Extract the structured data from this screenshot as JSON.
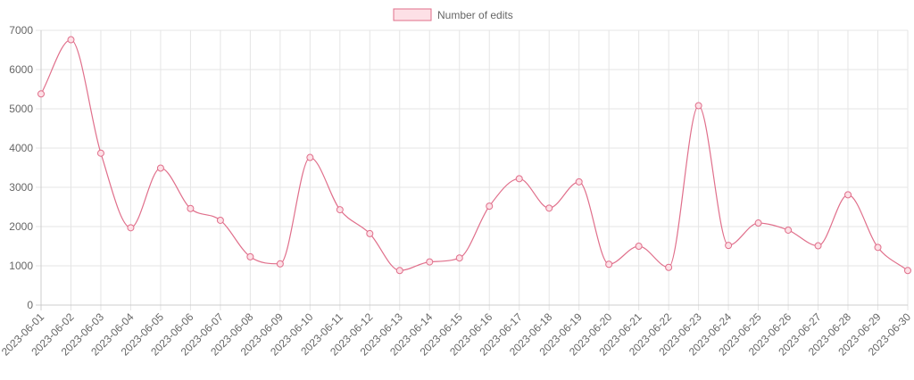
{
  "chart_data": {
    "type": "line",
    "x": [
      "2023-06-01",
      "2023-06-02",
      "2023-06-03",
      "2023-06-04",
      "2023-06-05",
      "2023-06-06",
      "2023-06-07",
      "2023-06-08",
      "2023-06-09",
      "2023-06-10",
      "2023-06-11",
      "2023-06-12",
      "2023-06-13",
      "2023-06-14",
      "2023-06-15",
      "2023-06-16",
      "2023-06-17",
      "2023-06-18",
      "2023-06-19",
      "2023-06-20",
      "2023-06-21",
      "2023-06-22",
      "2023-06-23",
      "2023-06-24",
      "2023-06-25",
      "2023-06-26",
      "2023-06-27",
      "2023-06-28",
      "2023-06-29",
      "2023-06-30"
    ],
    "series": [
      {
        "name": "Number of edits",
        "values": [
          5380,
          6760,
          3870,
          1970,
          3490,
          2460,
          2160,
          1230,
          1050,
          3760,
          2430,
          1820,
          880,
          1100,
          1200,
          2520,
          3220,
          2470,
          3140,
          1040,
          1500,
          960,
          5080,
          1520,
          2090,
          1910,
          1510,
          2810,
          1470,
          880
        ]
      }
    ],
    "ylim": [
      0,
      7000
    ],
    "y_ticks": [
      "0",
      "1000",
      "2000",
      "3000",
      "4000",
      "5000",
      "6000",
      "7000"
    ],
    "grid": true,
    "legend_position": "top-center",
    "colors": {
      "line": "#e06f8b",
      "fill": "#fde0e6",
      "grid": "#e5e5e5",
      "axis": "#cccccc",
      "text": "#666666"
    }
  }
}
